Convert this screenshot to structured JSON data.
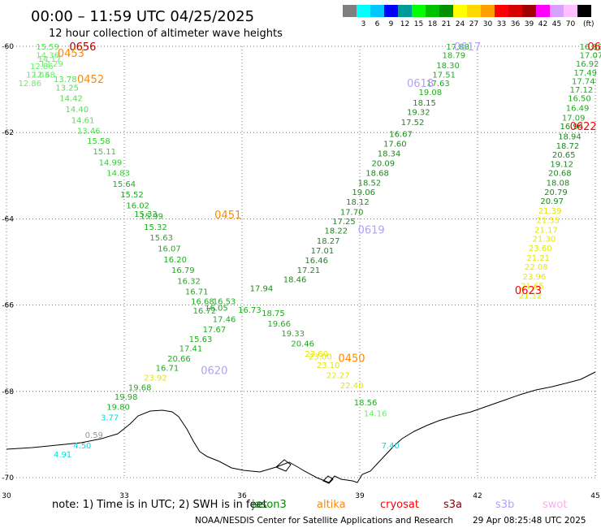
{
  "header": {
    "title": "00:00 – 11:59 UTC 04/25/2025",
    "subtitle": "12 hour collection of altimeter wave heights"
  },
  "color_scale": {
    "unit": "(ft)",
    "bins": [
      {
        "label": "",
        "color": "#7f7f7f"
      },
      {
        "label": "3",
        "color": "#00ffff"
      },
      {
        "label": "6",
        "color": "#00c8ff"
      },
      {
        "label": "9",
        "color": "#0000ff"
      },
      {
        "label": "12",
        "color": "#009a9a"
      },
      {
        "label": "15",
        "color": "#00ff00"
      },
      {
        "label": "18",
        "color": "#00c000"
      },
      {
        "label": "21",
        "color": "#009000"
      },
      {
        "label": "24",
        "color": "#ffff00"
      },
      {
        "label": "27",
        "color": "#ffd800"
      },
      {
        "label": "30",
        "color": "#ffa000"
      },
      {
        "label": "33",
        "color": "#ff0000"
      },
      {
        "label": "36",
        "color": "#d80000"
      },
      {
        "label": "39",
        "color": "#a00000"
      },
      {
        "label": "42",
        "color": "#ff00ff"
      },
      {
        "label": "45",
        "color": "#d8a0ff"
      },
      {
        "label": "70",
        "color": "#ffc0ff"
      },
      {
        "label": "",
        "color": "#000000"
      }
    ]
  },
  "footer": {
    "note": "note:  1) Time is in UTC;  2) SWH is in feet",
    "credit": "NOAA/NESDIS Center for Satellite Applications and Research",
    "timestamp": "29 Apr 08:25:48 UTC 2025"
  },
  "legend": [
    {
      "label": "jason3",
      "color": "#008800"
    },
    {
      "label": "altika",
      "color": "#ff8800"
    },
    {
      "label": "cryosat",
      "color": "#ff0000"
    },
    {
      "label": "s3a",
      "color": "#8b0000"
    },
    {
      "label": "s3b",
      "color": "#b0a0ff"
    },
    {
      "label": "swot",
      "color": "#ffaaee"
    }
  ],
  "chart_data": {
    "type": "scatter",
    "title": "00:00 – 11:59 UTC 04/25/2025",
    "subtitle": "12 hour collection of altimeter wave heights",
    "xlim": [
      30,
      45
    ],
    "ylim": [
      -70,
      -60
    ],
    "x_ticks": [
      "30",
      "33",
      "36",
      "39",
      "42",
      "45"
    ],
    "y_ticks": [
      "-60",
      "-62",
      "-64",
      "-66",
      "-68",
      "-70"
    ],
    "grid": true,
    "legend_position": "bottom",
    "pass_labels": [
      {
        "text": "0656",
        "lon": 31.6,
        "lat": -60.0,
        "color": "#b00000"
      },
      {
        "text": "0453",
        "lon": 31.3,
        "lat": -60.15,
        "color": "#ff8800"
      },
      {
        "text": "0452",
        "lon": 31.8,
        "lat": -60.75,
        "color": "#ff8800"
      },
      {
        "text": "0617",
        "lon": 41.4,
        "lat": -60.0,
        "color": "#b0a0ff"
      },
      {
        "text": "0618",
        "lon": 40.2,
        "lat": -60.85,
        "color": "#b0a0ff"
      },
      {
        "text": "06",
        "lon": 44.8,
        "lat": -60.0,
        "color": "#ff0000"
      },
      {
        "text": "0622",
        "lon": 44.35,
        "lat": -61.85,
        "color": "#ff0000"
      },
      {
        "text": "0451",
        "lon": 35.3,
        "lat": -63.9,
        "color": "#ff8800"
      },
      {
        "text": "0619",
        "lon": 38.95,
        "lat": -64.25,
        "color": "#b0a0ff"
      },
      {
        "text": "0623",
        "lon": 42.95,
        "lat": -65.65,
        "color": "#ff0000"
      },
      {
        "text": "0450",
        "lon": 38.45,
        "lat": -67.22,
        "color": "#ff8800"
      },
      {
        "text": "0620",
        "lon": 34.95,
        "lat": -67.5,
        "color": "#b0a0ff"
      }
    ],
    "series": [
      {
        "points": [
          {
            "lon": 30.75,
            "lat": -60.0,
            "v": "15.59",
            "c": "#55dd55"
          },
          {
            "lon": 30.75,
            "lat": -60.2,
            "v": "14.36",
            "c": "#66ee66"
          },
          {
            "lon": 30.8,
            "lat": -60.28,
            "v": "14.17",
            "c": "#66ee66"
          },
          {
            "lon": 30.85,
            "lat": -60.4,
            "v": "12.29",
            "c": "#66ee66"
          },
          {
            "lon": 30.6,
            "lat": -60.45,
            "v": "12.86",
            "c": "#66ee66"
          },
          {
            "lon": 30.5,
            "lat": -60.65,
            "v": "12.03",
            "c": "#66ee66"
          },
          {
            "lon": 30.3,
            "lat": -60.85,
            "v": "12.86",
            "c": "#66ee66"
          },
          {
            "lon": 30.65,
            "lat": -60.65,
            "v": "12.68",
            "c": "#66ee66"
          },
          {
            "lon": 31.2,
            "lat": -60.75,
            "v": "13.78",
            "c": "#55dd55"
          },
          {
            "lon": 31.25,
            "lat": -60.95,
            "v": "13.25",
            "c": "#55dd55"
          },
          {
            "lon": 31.35,
            "lat": -61.2,
            "v": "14.42",
            "c": "#55dd55"
          },
          {
            "lon": 31.5,
            "lat": -61.45,
            "v": "14.40",
            "c": "#55dd55"
          },
          {
            "lon": 31.65,
            "lat": -61.7,
            "v": "14.61",
            "c": "#55dd55"
          },
          {
            "lon": 31.8,
            "lat": -61.95,
            "v": "13.46",
            "c": "#55dd55"
          },
          {
            "lon": 32.05,
            "lat": -62.18,
            "v": "15.58",
            "c": "#33cc33"
          },
          {
            "lon": 32.2,
            "lat": -62.43,
            "v": "15.11",
            "c": "#33cc33"
          },
          {
            "lon": 32.35,
            "lat": -62.68,
            "v": "14.99",
            "c": "#33cc33"
          },
          {
            "lon": 32.55,
            "lat": -62.93,
            "v": "14.83",
            "c": "#33cc33"
          },
          {
            "lon": 32.7,
            "lat": -63.18,
            "v": "15.64",
            "c": "#22aa22"
          },
          {
            "lon": 32.9,
            "lat": -63.43,
            "v": "15.52",
            "c": "#22aa22"
          },
          {
            "lon": 33.05,
            "lat": -63.68,
            "v": "16.02",
            "c": "#22aa22"
          },
          {
            "lon": 33.25,
            "lat": -63.88,
            "v": "15.33",
            "c": "#22aa22"
          },
          {
            "lon": 33.4,
            "lat": -63.93,
            "v": "15.99",
            "c": "#22aa22"
          },
          {
            "lon": 33.5,
            "lat": -64.18,
            "v": "15.32",
            "c": "#22aa22"
          },
          {
            "lon": 33.65,
            "lat": -64.43,
            "v": "15.63",
            "c": "#22aa22"
          },
          {
            "lon": 33.85,
            "lat": -64.68,
            "v": "16.07",
            "c": "#22aa22"
          },
          {
            "lon": 34.0,
            "lat": -64.93,
            "v": "16.20",
            "c": "#22aa22"
          },
          {
            "lon": 34.2,
            "lat": -65.18,
            "v": "16.79",
            "c": "#22aa22"
          },
          {
            "lon": 34.35,
            "lat": -65.43,
            "v": "16.32",
            "c": "#22aa22"
          },
          {
            "lon": 34.55,
            "lat": -65.68,
            "v": "16.71",
            "c": "#22aa22"
          },
          {
            "lon": 34.7,
            "lat": -65.9,
            "v": "16.68",
            "c": "#22aa22"
          },
          {
            "lon": 34.75,
            "lat": -66.12,
            "v": "16.72",
            "c": "#22aa22"
          },
          {
            "lon": 35.25,
            "lat": -65.9,
            "v": "16.53",
            "c": "#22aa22"
          },
          {
            "lon": 35.05,
            "lat": -66.05,
            "v": "16.05",
            "c": "#22aa22"
          }
        ]
      },
      {
        "points": [
          {
            "lon": 41.2,
            "lat": -60.0,
            "v": "17.88",
            "c": "#22aa22"
          },
          {
            "lon": 41.1,
            "lat": -60.2,
            "v": "18.79",
            "c": "#22aa22"
          },
          {
            "lon": 40.95,
            "lat": -60.43,
            "v": "18.30",
            "c": "#22aa22"
          },
          {
            "lon": 40.85,
            "lat": -60.65,
            "v": "17.51",
            "c": "#22aa22"
          },
          {
            "lon": 40.7,
            "lat": -60.85,
            "v": "17.63",
            "c": "#22aa22"
          },
          {
            "lon": 40.5,
            "lat": -61.05,
            "v": "19.08",
            "c": "#22aa22"
          },
          {
            "lon": 40.35,
            "lat": -61.3,
            "v": "18.15",
            "c": "#228822"
          },
          {
            "lon": 40.2,
            "lat": -61.52,
            "v": "19.32",
            "c": "#228822"
          },
          {
            "lon": 40.05,
            "lat": -61.75,
            "v": "17.52",
            "c": "#228822"
          },
          {
            "lon": 39.75,
            "lat": -62.02,
            "v": "16.67",
            "c": "#228822"
          },
          {
            "lon": 39.6,
            "lat": -62.25,
            "v": "17.60",
            "c": "#228822"
          },
          {
            "lon": 39.45,
            "lat": -62.48,
            "v": "18.34",
            "c": "#228822"
          },
          {
            "lon": 39.3,
            "lat": -62.7,
            "v": "20.09",
            "c": "#228822"
          },
          {
            "lon": 39.15,
            "lat": -62.93,
            "v": "18.68",
            "c": "#228822"
          },
          {
            "lon": 38.95,
            "lat": -63.15,
            "v": "18.52",
            "c": "#228822"
          },
          {
            "lon": 38.8,
            "lat": -63.37,
            "v": "19.06",
            "c": "#228822"
          },
          {
            "lon": 38.65,
            "lat": -63.6,
            "v": "18.12",
            "c": "#228822"
          },
          {
            "lon": 38.5,
            "lat": -63.83,
            "v": "17.70",
            "c": "#228822"
          },
          {
            "lon": 38.3,
            "lat": -64.05,
            "v": "17.25",
            "c": "#228822"
          },
          {
            "lon": 38.1,
            "lat": -64.27,
            "v": "18.22",
            "c": "#228822"
          },
          {
            "lon": 37.9,
            "lat": -64.5,
            "v": "18.27",
            "c": "#228822"
          },
          {
            "lon": 37.75,
            "lat": -64.73,
            "v": "17.01",
            "c": "#228822"
          },
          {
            "lon": 37.6,
            "lat": -64.95,
            "v": "16.46",
            "c": "#228822"
          },
          {
            "lon": 37.4,
            "lat": -65.18,
            "v": "17.21",
            "c": "#228822"
          },
          {
            "lon": 37.05,
            "lat": -65.4,
            "v": "18.46",
            "c": "#228822"
          },
          {
            "lon": 36.2,
            "lat": -65.6,
            "v": "17.94",
            "c": "#228822"
          }
        ]
      },
      {
        "points": [
          {
            "lon": 44.6,
            "lat": -60.0,
            "v": "16.88",
            "c": "#22aa22"
          },
          {
            "lon": 44.6,
            "lat": -60.2,
            "v": "17.07",
            "c": "#22aa22"
          },
          {
            "lon": 44.5,
            "lat": -60.4,
            "v": "16.92",
            "c": "#22aa22"
          },
          {
            "lon": 44.45,
            "lat": -60.6,
            "v": "17.49",
            "c": "#22aa22"
          },
          {
            "lon": 44.4,
            "lat": -60.8,
            "v": "17.74",
            "c": "#22aa22"
          },
          {
            "lon": 44.35,
            "lat": -61.0,
            "v": "17.12",
            "c": "#22aa22"
          },
          {
            "lon": 44.3,
            "lat": -61.2,
            "v": "16.50",
            "c": "#22aa22"
          },
          {
            "lon": 44.25,
            "lat": -61.42,
            "v": "16.49",
            "c": "#22aa22"
          },
          {
            "lon": 44.15,
            "lat": -61.65,
            "v": "17.09",
            "c": "#22aa22"
          },
          {
            "lon": 44.1,
            "lat": -61.85,
            "v": "16.94",
            "c": "#228822"
          },
          {
            "lon": 44.05,
            "lat": -62.08,
            "v": "18.94",
            "c": "#228822"
          },
          {
            "lon": 44.0,
            "lat": -62.3,
            "v": "18.72",
            "c": "#228822"
          },
          {
            "lon": 43.9,
            "lat": -62.5,
            "v": "20.65",
            "c": "#228822"
          },
          {
            "lon": 43.85,
            "lat": -62.72,
            "v": "19.12",
            "c": "#228822"
          },
          {
            "lon": 43.8,
            "lat": -62.93,
            "v": "20.68",
            "c": "#228822"
          },
          {
            "lon": 43.75,
            "lat": -63.15,
            "v": "18.08",
            "c": "#228822"
          },
          {
            "lon": 43.7,
            "lat": -63.37,
            "v": "20.79",
            "c": "#228822"
          },
          {
            "lon": 43.6,
            "lat": -63.58,
            "v": "20.97",
            "c": "#228822"
          },
          {
            "lon": 43.55,
            "lat": -63.8,
            "v": "21.39",
            "c": "#e6e600"
          },
          {
            "lon": 43.5,
            "lat": -64.02,
            "v": "21.55",
            "c": "#e6e600"
          },
          {
            "lon": 43.45,
            "lat": -64.25,
            "v": "21.17",
            "c": "#e6e600"
          },
          {
            "lon": 43.4,
            "lat": -64.45,
            "v": "21.30",
            "c": "#e6e600"
          },
          {
            "lon": 43.3,
            "lat": -64.67,
            "v": "23.60",
            "c": "#e6e600"
          },
          {
            "lon": 43.25,
            "lat": -64.9,
            "v": "21.21",
            "c": "#e6e600"
          },
          {
            "lon": 43.2,
            "lat": -65.1,
            "v": "22.08",
            "c": "#e6e600"
          },
          {
            "lon": 43.15,
            "lat": -65.33,
            "v": "23.96",
            "c": "#e6e600"
          },
          {
            "lon": 43.1,
            "lat": -65.55,
            "v": "21.65",
            "c": "#e6e600"
          },
          {
            "lon": 43.05,
            "lat": -65.77,
            "v": "21.12",
            "c": "#e6e600"
          }
        ]
      },
      {
        "points": [
          {
            "lon": 35.9,
            "lat": -66.1,
            "v": "16.73",
            "c": "#22aa22"
          },
          {
            "lon": 35.25,
            "lat": -66.32,
            "v": "17.46",
            "c": "#22aa22"
          },
          {
            "lon": 35.0,
            "lat": -66.55,
            "v": "17.67",
            "c": "#22aa22"
          },
          {
            "lon": 34.65,
            "lat": -66.78,
            "v": "15.63",
            "c": "#22aa22"
          },
          {
            "lon": 34.4,
            "lat": -67.0,
            "v": "17.41",
            "c": "#22aa22"
          },
          {
            "lon": 34.1,
            "lat": -67.23,
            "v": "20.66",
            "c": "#22aa22"
          },
          {
            "lon": 33.8,
            "lat": -67.45,
            "v": "16.71",
            "c": "#22aa22"
          },
          {
            "lon": 33.5,
            "lat": -67.67,
            "v": "23.92",
            "c": "#e6e600"
          },
          {
            "lon": 33.1,
            "lat": -67.9,
            "v": "19.68",
            "c": "#22aa22"
          },
          {
            "lon": 32.75,
            "lat": -68.12,
            "v": "19.98",
            "c": "#22aa22"
          },
          {
            "lon": 32.55,
            "lat": -68.35,
            "v": "19.80",
            "c": "#22aa22"
          },
          {
            "lon": 32.4,
            "lat": -68.6,
            "v": "3.77",
            "c": "#00dddd"
          },
          {
            "lon": 32.0,
            "lat": -69.0,
            "v": "0.59",
            "c": "#999999"
          },
          {
            "lon": 31.7,
            "lat": -69.25,
            "v": "4.50",
            "c": "#00dddd"
          },
          {
            "lon": 31.2,
            "lat": -69.45,
            "v": "4.91",
            "c": "#00dddd"
          }
        ]
      },
      {
        "points": [
          {
            "lon": 36.5,
            "lat": -66.18,
            "v": "18.75",
            "c": "#22aa22"
          },
          {
            "lon": 36.65,
            "lat": -66.42,
            "v": "19.66",
            "c": "#22aa22"
          },
          {
            "lon": 37.0,
            "lat": -66.65,
            "v": "19.33",
            "c": "#22aa22"
          },
          {
            "lon": 37.25,
            "lat": -66.88,
            "v": "20.46",
            "c": "#22aa22"
          },
          {
            "lon": 37.6,
            "lat": -67.12,
            "v": "23.60",
            "c": "#e6e600"
          },
          {
            "lon": 37.7,
            "lat": -67.18,
            "v": "23.00",
            "c": "#e6e600"
          },
          {
            "lon": 37.9,
            "lat": -67.38,
            "v": "23.10",
            "c": "#e6e600"
          },
          {
            "lon": 38.15,
            "lat": -67.62,
            "v": "22.27",
            "c": "#e6e600"
          },
          {
            "lon": 38.5,
            "lat": -67.85,
            "v": "22.40",
            "c": "#e6e600"
          },
          {
            "lon": 38.85,
            "lat": -68.25,
            "v": "18.56",
            "c": "#22aa22"
          },
          {
            "lon": 39.1,
            "lat": -68.5,
            "v": "14.16",
            "c": "#66ee66"
          },
          {
            "lon": 39.55,
            "lat": -69.25,
            "v": "7.40",
            "c": "#00dddd"
          }
        ]
      }
    ]
  }
}
